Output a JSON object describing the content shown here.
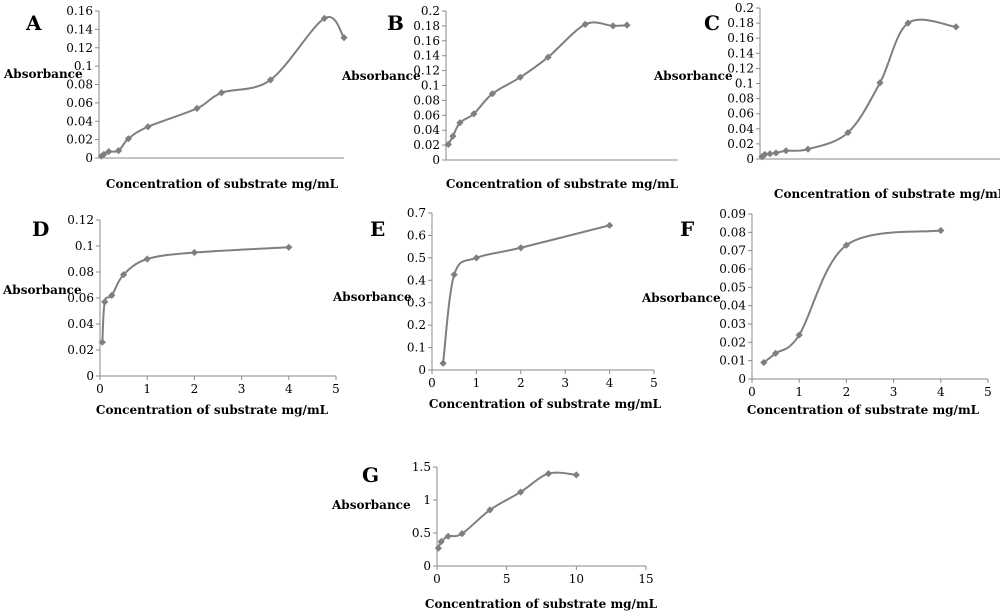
{
  "chart_data": [
    {
      "type": "line",
      "panel_label": "A",
      "ylabel": "Absorbance",
      "xlabel": "Concentration of substrate mg/mL",
      "ylim": [
        0,
        0.16
      ],
      "yticks": [
        "0",
        "0.02",
        "0.04",
        "0.06",
        "0.08",
        "0.1",
        "0.12",
        "0.14",
        "0.16"
      ],
      "xlim": [
        0,
        5
      ],
      "xticks": [],
      "ygrid": false,
      "series": [
        {
          "x": [
            0.05,
            0.1,
            0.2,
            0.4,
            0.6,
            1.0,
            2.0,
            2.5,
            3.5,
            4.6,
            5.0
          ],
          "y": [
            0.002,
            0.004,
            0.007,
            0.008,
            0.021,
            0.034,
            0.054,
            0.071,
            0.085,
            0.152,
            0.131
          ]
        }
      ]
    },
    {
      "type": "line",
      "panel_label": "B",
      "ylabel": "Absorbance",
      "xlabel": "Concentration of substrate mg/mL",
      "ylim": [
        0,
        0.2
      ],
      "yticks": [
        "0",
        "0.02",
        "0.04",
        "0.06",
        "0.08",
        "0.1",
        "0.12",
        "0.14",
        "0.16",
        "0.18",
        "0.2"
      ],
      "xlim": [
        0,
        5
      ],
      "xticks": [],
      "ygrid": false,
      "series": [
        {
          "x": [
            0.05,
            0.15,
            0.3,
            0.6,
            1.0,
            1.6,
            2.2,
            3.0,
            3.6,
            3.9
          ],
          "y": [
            0.021,
            0.032,
            0.05,
            0.062,
            0.089,
            0.111,
            0.138,
            0.182,
            0.18,
            0.181
          ]
        }
      ]
    },
    {
      "type": "line",
      "panel_label": "C",
      "ylabel": "Absorbance",
      "xlabel": "Concentration of substrate mg/mL",
      "ylim": [
        0,
        0.2
      ],
      "yticks": [
        "0",
        "0.02",
        "0.04",
        "0.06",
        "0.08",
        "0.1",
        "0.12",
        "0.14",
        "0.16",
        "0.18",
        "0.2"
      ],
      "xlim": [
        0,
        6
      ],
      "xticks": [],
      "ygrid": false,
      "series": [
        {
          "x": [
            0.05,
            0.12,
            0.25,
            0.4,
            0.65,
            1.2,
            2.2,
            3.0,
            3.7,
            4.9
          ],
          "y": [
            0.003,
            0.006,
            0.007,
            0.008,
            0.011,
            0.013,
            0.035,
            0.101,
            0.18,
            0.175
          ]
        }
      ]
    },
    {
      "type": "line",
      "panel_label": "D",
      "ylabel": "Absorbance",
      "xlabel": "Concentration of substrate mg/mL",
      "ylim": [
        0,
        0.12
      ],
      "yticks": [
        "0",
        "0.02",
        "0.04",
        "0.06",
        "0.08",
        "0.1",
        "0.12"
      ],
      "xlim": [
        0,
        5
      ],
      "xticks": [
        "0",
        "1",
        "2",
        "3",
        "4",
        "5"
      ],
      "ygrid": false,
      "series": [
        {
          "x": [
            0.05,
            0.1,
            0.25,
            0.5,
            1,
            2,
            4
          ],
          "y": [
            0.026,
            0.057,
            0.062,
            0.078,
            0.09,
            0.095,
            0.099
          ]
        }
      ]
    },
    {
      "type": "line",
      "panel_label": "E",
      "ylabel": "Absorbance",
      "xlabel": "Concentration of substrate mg/mL",
      "ylim": [
        0,
        0.7
      ],
      "yticks": [
        "0",
        "0.1",
        "0.2",
        "0.3",
        "0.4",
        "0.5",
        "0.6",
        "0.7"
      ],
      "xlim": [
        0,
        5
      ],
      "xticks": [
        "0",
        "1",
        "2",
        "3",
        "4",
        "5"
      ],
      "ygrid": false,
      "series": [
        {
          "x": [
            0.25,
            0.5,
            1,
            2,
            4
          ],
          "y": [
            0.03,
            0.425,
            0.5,
            0.545,
            0.645
          ]
        }
      ]
    },
    {
      "type": "line",
      "panel_label": "F",
      "ylabel": "Absorbance",
      "xlabel": "Concentration of substrate mg/mL",
      "ylim": [
        0,
        0.09
      ],
      "yticks": [
        "0",
        "0.01",
        "0.02",
        "0.03",
        "0.04",
        "0.05",
        "0.06",
        "0.07",
        "0.08",
        "0.09"
      ],
      "xlim": [
        0,
        5
      ],
      "xticks": [
        "0",
        "1",
        "2",
        "3",
        "4",
        "5"
      ],
      "ygrid": false,
      "series": [
        {
          "x": [
            0.25,
            0.5,
            1,
            2,
            4
          ],
          "y": [
            0.009,
            0.014,
            0.024,
            0.073,
            0.081
          ]
        }
      ]
    },
    {
      "type": "line",
      "panel_label": "G",
      "ylabel": "Absorbance",
      "xlabel": "Concentration of substrate mg/mL",
      "ylim": [
        0,
        1.5
      ],
      "yticks": [
        "0",
        "0.5",
        "1",
        "1.5"
      ],
      "xlim": [
        0,
        15
      ],
      "xticks": [
        "0",
        "5",
        "10",
        "15"
      ],
      "ygrid": false,
      "series": [
        {
          "x": [
            0.1,
            0.3,
            0.8,
            1.8,
            3.8,
            6,
            8,
            10
          ],
          "y": [
            0.27,
            0.37,
            0.45,
            0.49,
            0.85,
            1.12,
            1.4,
            1.38
          ]
        }
      ]
    }
  ]
}
